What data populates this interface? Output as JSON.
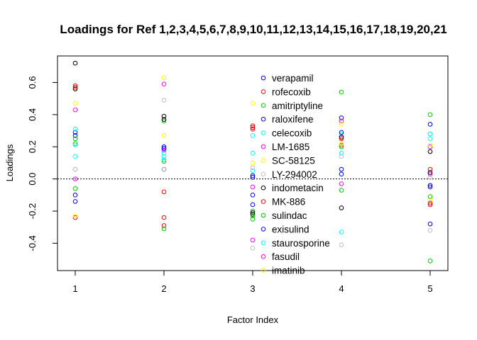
{
  "chart_data": {
    "type": "scatter",
    "title": "Loadings for Ref 1,2,3,4,5,6,7,8,9,10,11,12,13,14,15,16,17,18,19,20,21",
    "xlabel": "Factor Index",
    "ylabel": "Loadings",
    "xlim": [
      0.8,
      5.2
    ],
    "ylim": [
      -0.57,
      0.765
    ],
    "x_ticks": [
      1,
      2,
      3,
      4,
      5
    ],
    "y_ticks": [
      -0.4,
      -0.2,
      0.0,
      0.2,
      0.4,
      0.6
    ],
    "y_tick_labels": [
      "-0.4",
      "-0.2",
      "0.0",
      "0.2",
      "0.4",
      "0.6"
    ],
    "reference_line": 0.0,
    "legend_position": "top-center",
    "series": [
      {
        "name": "verapamil",
        "color": "#0000ff",
        "values": [
          0.27,
          0.06,
          -0.16,
          0.03,
          -0.28
        ]
      },
      {
        "name": "rofecoxib",
        "color": "#ff0000",
        "values": [
          0.58,
          -0.08,
          0.33,
          0.26,
          0.06
        ]
      },
      {
        "name": "amitriptyline",
        "color": "#00cd00",
        "values": [
          0.25,
          0.36,
          -0.2,
          0.54,
          0.4
        ]
      },
      {
        "name": "raloxifene",
        "color": "#0000ff",
        "values": [
          0.29,
          0.2,
          -0.1,
          0.38,
          0.34
        ]
      },
      {
        "name": "celecoxib",
        "color": "#00ffff",
        "values": [
          0.31,
          0.14,
          0.16,
          0.28,
          0.28
        ]
      },
      {
        "name": "LM-1685",
        "color": "#ff00ff",
        "values": [
          0.43,
          0.59,
          -0.38,
          0.36,
          0.2
        ]
      },
      {
        "name": "SC-58125",
        "color": "#ffff00",
        "values": [
          0.47,
          0.63,
          0.47,
          0.34,
          0.21
        ]
      },
      {
        "name": "LY-294002",
        "color": "#bebebe",
        "values": [
          0.06,
          0.49,
          -0.43,
          -0.41,
          -0.32
        ]
      },
      {
        "name": "indometacin",
        "color": "#000000",
        "values": [
          0.72,
          0.39,
          -0.22,
          -0.18,
          0.17
        ]
      },
      {
        "name": "MK-886",
        "color": "#ff0000",
        "values": [
          -0.24,
          -0.24,
          0.32,
          0.21,
          -0.16
        ]
      },
      {
        "name": "sulindac",
        "color": "#00cd00",
        "values": [
          -0.06,
          0.11,
          -0.25,
          0.2,
          -0.51
        ]
      },
      {
        "name": "exisulind",
        "color": "#0000ff",
        "values": [
          -0.14,
          0.19,
          0.02,
          0.06,
          -0.05
        ]
      },
      {
        "name": "staurosporine",
        "color": "#00ffff",
        "values": [
          0.14,
          0.16,
          0.05,
          -0.33,
          0.25
        ]
      },
      {
        "name": "fasudil",
        "color": "#ff00ff",
        "values": [
          0.0,
          0.18,
          -0.05,
          -0.03,
          0.03
        ]
      },
      {
        "name": "imatinib",
        "color": "#ffff00",
        "values": [
          -0.23,
          0.27,
          0.1,
          0.22,
          -0.13
        ]
      },
      {
        "name": "",
        "color": "#bebebe",
        "values": [
          0.06,
          0.06,
          0.07,
          0.14,
          0.01
        ]
      },
      {
        "name": "",
        "color": "#000000",
        "values": [
          0.56,
          0.37,
          -0.21,
          0.26,
          0.04
        ]
      },
      {
        "name": "",
        "color": "#ff0000",
        "values": [
          0.57,
          -0.29,
          0.31,
          0.25,
          -0.15
        ]
      },
      {
        "name": "",
        "color": "#00cd00",
        "values": [
          0.22,
          -0.31,
          -0.23,
          -0.07,
          -0.11
        ]
      },
      {
        "name": "",
        "color": "#0000ff",
        "values": [
          -0.1,
          0.19,
          0.01,
          0.29,
          -0.04
        ]
      },
      {
        "name": "",
        "color": "#00ffff",
        "values": [
          0.21,
          0.12,
          0.27,
          0.16,
          0.28
        ]
      }
    ]
  }
}
